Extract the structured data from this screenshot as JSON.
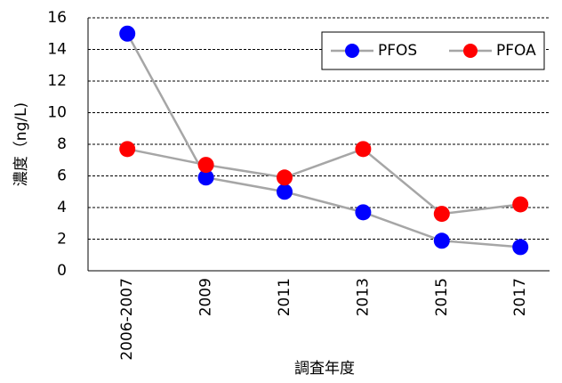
{
  "chart_data": {
    "type": "line",
    "x_label": "調査年度",
    "y_label": "濃度（ng/L)",
    "categories": [
      "2006-2007",
      "2009",
      "2011",
      "2013",
      "2015",
      "2017"
    ],
    "series": [
      {
        "name": "PFOS",
        "color": "#0000ff",
        "values": [
          15,
          5.9,
          5.0,
          3.7,
          1.9,
          1.5
        ]
      },
      {
        "name": "PFOA",
        "color": "#ff0000",
        "values": [
          7.7,
          6.7,
          5.9,
          7.7,
          3.6,
          4.2
        ]
      }
    ],
    "line_color": "#a6a6a6",
    "ylim": [
      0,
      16
    ],
    "yticks": [
      0,
      2,
      4,
      6,
      8,
      10,
      12,
      14,
      16
    ],
    "grid": true,
    "legend": "top-right"
  }
}
